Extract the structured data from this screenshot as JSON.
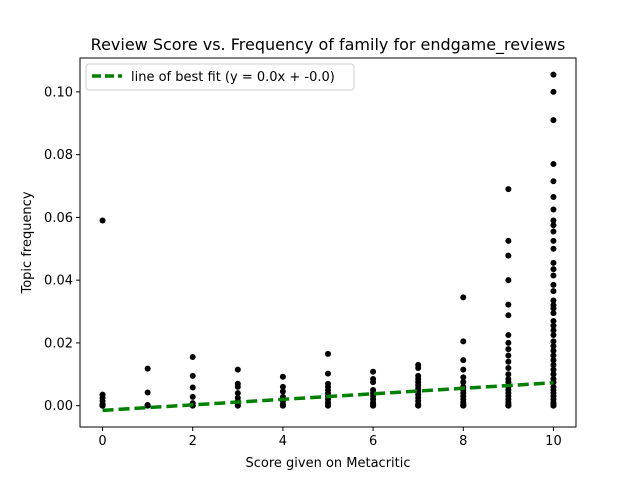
{
  "chart_data": {
    "type": "scatter",
    "title": "Review Score vs. Frequency of family for endgame_reviews",
    "xlabel": "Score given on Metacritic",
    "ylabel": "Topic frequency",
    "xlim": [
      -0.5,
      10.5
    ],
    "ylim": [
      -0.0068,
      0.1108
    ],
    "x_ticks": [
      0,
      2,
      4,
      6,
      8,
      10
    ],
    "x_tick_labels": [
      "0",
      "2",
      "4",
      "6",
      "8",
      "10"
    ],
    "y_ticks": [
      0.0,
      0.02,
      0.04,
      0.06,
      0.08,
      0.1
    ],
    "y_tick_labels": [
      "0.00",
      "0.02",
      "0.04",
      "0.06",
      "0.08",
      "0.10"
    ],
    "grid": false,
    "legend": {
      "position": "top-left",
      "entries": [
        "line of best fit (y = 0.0x + -0.0)"
      ]
    },
    "colors": {
      "points": "#000000",
      "fit_line": "#008000"
    },
    "fit_line": {
      "x": [
        0,
        10
      ],
      "y": [
        -0.0015,
        0.0073
      ]
    },
    "series": [
      {
        "type": "scatter",
        "points": [
          [
            0,
            0.059
          ],
          [
            0,
            0.0035
          ],
          [
            0,
            0.0025
          ],
          [
            0,
            0.0015
          ],
          [
            0,
            0.0005
          ],
          [
            0,
            0.0
          ],
          [
            0,
            0.0
          ],
          [
            0,
            0.0
          ],
          [
            1,
            0.0118
          ],
          [
            1,
            0.0042
          ],
          [
            1,
            0.0002
          ],
          [
            1,
            0.0
          ],
          [
            1,
            0.0
          ],
          [
            2,
            0.0155
          ],
          [
            2,
            0.0095
          ],
          [
            2,
            0.0058
          ],
          [
            2,
            0.0028
          ],
          [
            2,
            0.0008
          ],
          [
            2,
            0.0
          ],
          [
            2,
            0.0
          ],
          [
            3,
            0.0115
          ],
          [
            3,
            0.007
          ],
          [
            3,
            0.006
          ],
          [
            3,
            0.004
          ],
          [
            3,
            0.0025
          ],
          [
            3,
            0.0015
          ],
          [
            3,
            0.0008
          ],
          [
            3,
            0.0
          ],
          [
            3,
            0.0
          ],
          [
            4,
            0.0092
          ],
          [
            4,
            0.006
          ],
          [
            4,
            0.0045
          ],
          [
            4,
            0.0028
          ],
          [
            4,
            0.0015
          ],
          [
            4,
            0.0005
          ],
          [
            4,
            0.0
          ],
          [
            4,
            0.0
          ],
          [
            5,
            0.0165
          ],
          [
            5,
            0.0102
          ],
          [
            5,
            0.007
          ],
          [
            5,
            0.006
          ],
          [
            5,
            0.005
          ],
          [
            5,
            0.004
          ],
          [
            5,
            0.003
          ],
          [
            5,
            0.002
          ],
          [
            5,
            0.001
          ],
          [
            5,
            0.0005
          ],
          [
            5,
            0.0
          ],
          [
            5,
            0.0
          ],
          [
            6,
            0.0108
          ],
          [
            6,
            0.0085
          ],
          [
            6,
            0.0075
          ],
          [
            6,
            0.005
          ],
          [
            6,
            0.004
          ],
          [
            6,
            0.003
          ],
          [
            6,
            0.002
          ],
          [
            6,
            0.001
          ],
          [
            6,
            0.0005
          ],
          [
            6,
            0.0
          ],
          [
            6,
            0.0
          ],
          [
            7,
            0.013
          ],
          [
            7,
            0.012
          ],
          [
            7,
            0.0095
          ],
          [
            7,
            0.0085
          ],
          [
            7,
            0.0075
          ],
          [
            7,
            0.0065
          ],
          [
            7,
            0.0055
          ],
          [
            7,
            0.0045
          ],
          [
            7,
            0.0035
          ],
          [
            7,
            0.0025
          ],
          [
            7,
            0.0015
          ],
          [
            7,
            0.0005
          ],
          [
            7,
            0.0
          ],
          [
            7,
            0.0
          ],
          [
            8,
            0.0345
          ],
          [
            8,
            0.0205
          ],
          [
            8,
            0.0145
          ],
          [
            8,
            0.0115
          ],
          [
            8,
            0.009
          ],
          [
            8,
            0.0075
          ],
          [
            8,
            0.006
          ],
          [
            8,
            0.005
          ],
          [
            8,
            0.004
          ],
          [
            8,
            0.003
          ],
          [
            8,
            0.002
          ],
          [
            8,
            0.001
          ],
          [
            8,
            0.0005
          ],
          [
            8,
            0.0
          ],
          [
            8,
            0.0
          ],
          [
            9,
            0.069
          ],
          [
            9,
            0.0525
          ],
          [
            9,
            0.0478
          ],
          [
            9,
            0.04
          ],
          [
            9,
            0.0322
          ],
          [
            9,
            0.0288
          ],
          [
            9,
            0.0225
          ],
          [
            9,
            0.02
          ],
          [
            9,
            0.018
          ],
          [
            9,
            0.016
          ],
          [
            9,
            0.014
          ],
          [
            9,
            0.012
          ],
          [
            9,
            0.01
          ],
          [
            9,
            0.0085
          ],
          [
            9,
            0.0075
          ],
          [
            9,
            0.006
          ],
          [
            9,
            0.005
          ],
          [
            9,
            0.004
          ],
          [
            9,
            0.003
          ],
          [
            9,
            0.002
          ],
          [
            9,
            0.001
          ],
          [
            9,
            0.0005
          ],
          [
            9,
            0.0
          ],
          [
            9,
            0.0
          ],
          [
            10,
            0.1055
          ],
          [
            10,
            0.1
          ],
          [
            10,
            0.091
          ],
          [
            10,
            0.077
          ],
          [
            10,
            0.0715
          ],
          [
            10,
            0.0665
          ],
          [
            10,
            0.0625
          ],
          [
            10,
            0.059
          ],
          [
            10,
            0.0575
          ],
          [
            10,
            0.0555
          ],
          [
            10,
            0.0525
          ],
          [
            10,
            0.05
          ],
          [
            10,
            0.0455
          ],
          [
            10,
            0.0435
          ],
          [
            10,
            0.0415
          ],
          [
            10,
            0.0385
          ],
          [
            10,
            0.0365
          ],
          [
            10,
            0.0335
          ],
          [
            10,
            0.032
          ],
          [
            10,
            0.031
          ],
          [
            10,
            0.0295
          ],
          [
            10,
            0.027
          ],
          [
            10,
            0.0255
          ],
          [
            10,
            0.024
          ],
          [
            10,
            0.0225
          ],
          [
            10,
            0.0205
          ],
          [
            10,
            0.019
          ],
          [
            10,
            0.0175
          ],
          [
            10,
            0.016
          ],
          [
            10,
            0.0145
          ],
          [
            10,
            0.013
          ],
          [
            10,
            0.0115
          ],
          [
            10,
            0.01
          ],
          [
            10,
            0.0085
          ],
          [
            10,
            0.0075
          ],
          [
            10,
            0.006
          ],
          [
            10,
            0.005
          ],
          [
            10,
            0.004
          ],
          [
            10,
            0.003
          ],
          [
            10,
            0.002
          ],
          [
            10,
            0.001
          ],
          [
            10,
            0.0005
          ],
          [
            10,
            0.0
          ],
          [
            10,
            0.0
          ]
        ]
      }
    ]
  }
}
